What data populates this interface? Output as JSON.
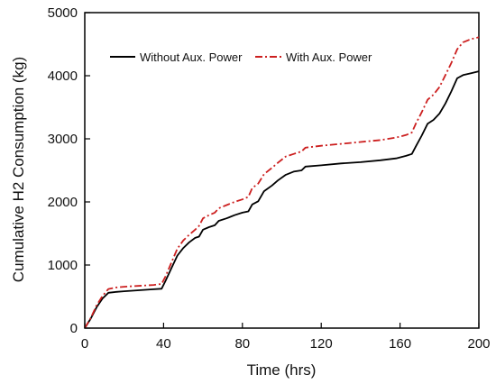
{
  "chart_data": {
    "type": "line",
    "title": "",
    "xlabel": "Time (hrs)",
    "ylabel": "Cumulative H2 Consumption (kg)",
    "xlim": [
      0,
      200
    ],
    "ylim": [
      0,
      5000
    ],
    "xticks": [
      0,
      40,
      80,
      120,
      160,
      200
    ],
    "yticks": [
      0,
      1000,
      2000,
      3000,
      4000,
      5000
    ],
    "grid": false,
    "legend": "top-left",
    "series": [
      {
        "name": "Without Aux. Power",
        "color": "#000000",
        "dash": "solid",
        "points": [
          [
            0,
            0
          ],
          [
            3,
            150
          ],
          [
            6,
            330
          ],
          [
            9,
            470
          ],
          [
            12,
            560
          ],
          [
            16,
            575
          ],
          [
            20,
            585
          ],
          [
            25,
            595
          ],
          [
            30,
            605
          ],
          [
            35,
            615
          ],
          [
            39,
            625
          ],
          [
            41,
            750
          ],
          [
            44,
            950
          ],
          [
            47,
            1150
          ],
          [
            50,
            1270
          ],
          [
            53,
            1360
          ],
          [
            56,
            1430
          ],
          [
            58,
            1450
          ],
          [
            60,
            1560
          ],
          [
            63,
            1600
          ],
          [
            66,
            1630
          ],
          [
            68,
            1700
          ],
          [
            72,
            1740
          ],
          [
            76,
            1790
          ],
          [
            80,
            1830
          ],
          [
            83,
            1850
          ],
          [
            85,
            1960
          ],
          [
            88,
            2010
          ],
          [
            91,
            2170
          ],
          [
            95,
            2260
          ],
          [
            98,
            2340
          ],
          [
            102,
            2430
          ],
          [
            106,
            2480
          ],
          [
            110,
            2500
          ],
          [
            112,
            2560
          ],
          [
            120,
            2580
          ],
          [
            130,
            2610
          ],
          [
            140,
            2630
          ],
          [
            150,
            2660
          ],
          [
            158,
            2690
          ],
          [
            163,
            2730
          ],
          [
            166,
            2760
          ],
          [
            168,
            2880
          ],
          [
            171,
            3050
          ],
          [
            174,
            3240
          ],
          [
            177,
            3300
          ],
          [
            180,
            3400
          ],
          [
            183,
            3560
          ],
          [
            186,
            3750
          ],
          [
            189,
            3960
          ],
          [
            192,
            4010
          ],
          [
            196,
            4040
          ],
          [
            200,
            4070
          ]
        ]
      },
      {
        "name": "With Aux. Power",
        "color": "#cc1f1f",
        "dash": "dashdot",
        "points": [
          [
            0,
            0
          ],
          [
            3,
            160
          ],
          [
            6,
            360
          ],
          [
            9,
            510
          ],
          [
            12,
            620
          ],
          [
            16,
            645
          ],
          [
            20,
            655
          ],
          [
            25,
            665
          ],
          [
            30,
            675
          ],
          [
            35,
            685
          ],
          [
            39,
            700
          ],
          [
            41,
            820
          ],
          [
            44,
            1040
          ],
          [
            47,
            1260
          ],
          [
            50,
            1390
          ],
          [
            53,
            1480
          ],
          [
            56,
            1560
          ],
          [
            58,
            1620
          ],
          [
            60,
            1740
          ],
          [
            63,
            1790
          ],
          [
            66,
            1830
          ],
          [
            68,
            1900
          ],
          [
            72,
            1950
          ],
          [
            76,
            2000
          ],
          [
            80,
            2040
          ],
          [
            83,
            2080
          ],
          [
            85,
            2220
          ],
          [
            88,
            2290
          ],
          [
            91,
            2440
          ],
          [
            95,
            2540
          ],
          [
            98,
            2620
          ],
          [
            102,
            2720
          ],
          [
            106,
            2760
          ],
          [
            110,
            2800
          ],
          [
            112,
            2860
          ],
          [
            120,
            2890
          ],
          [
            130,
            2920
          ],
          [
            140,
            2950
          ],
          [
            150,
            2980
          ],
          [
            158,
            3020
          ],
          [
            163,
            3060
          ],
          [
            166,
            3100
          ],
          [
            168,
            3240
          ],
          [
            171,
            3420
          ],
          [
            174,
            3620
          ],
          [
            177,
            3700
          ],
          [
            180,
            3820
          ],
          [
            183,
            4010
          ],
          [
            186,
            4200
          ],
          [
            189,
            4420
          ],
          [
            192,
            4530
          ],
          [
            196,
            4580
          ],
          [
            200,
            4610
          ]
        ]
      }
    ]
  }
}
